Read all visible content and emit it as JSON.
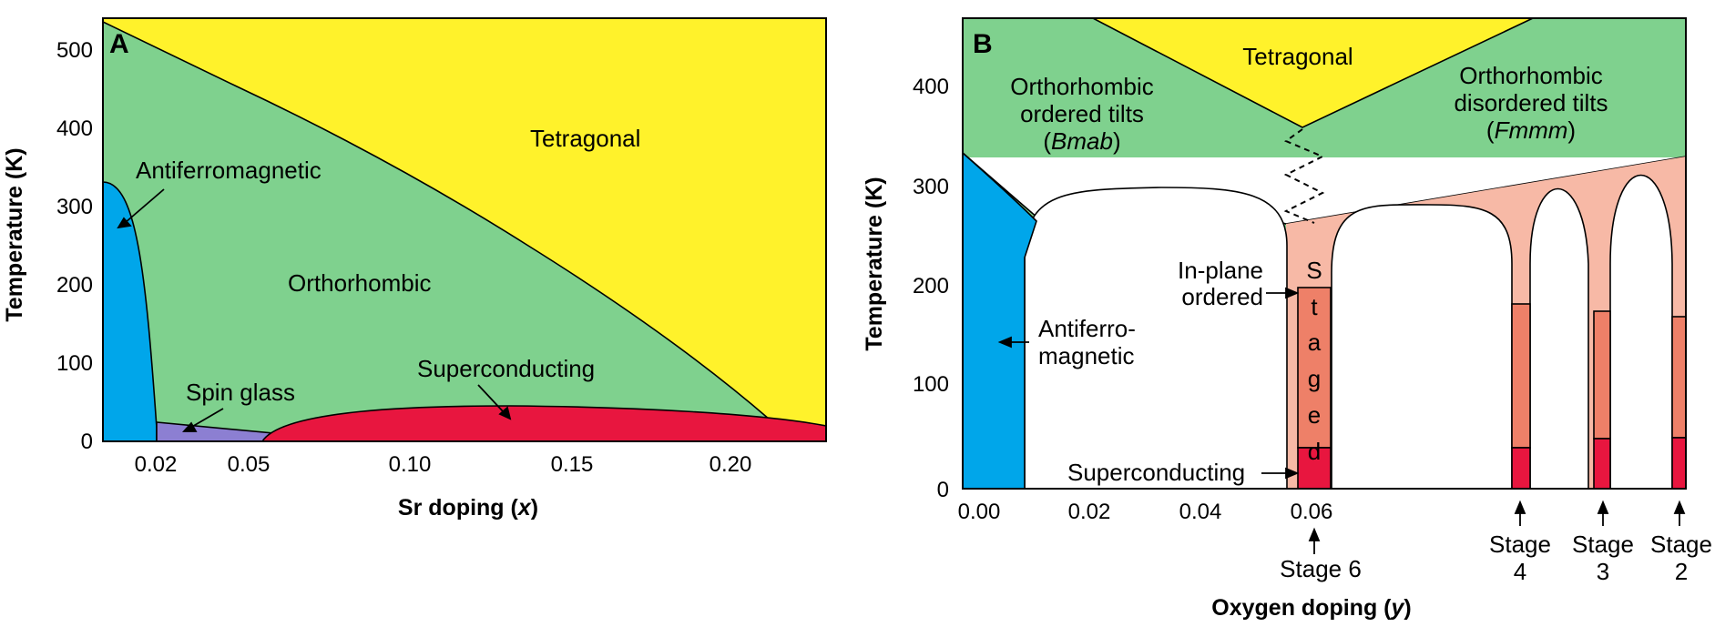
{
  "colors": {
    "tetragonal": "#FFF22B",
    "orthorhombic": "#7FD18E",
    "antiferromagnetic": "#00A6EA",
    "spin_glass": "#8C7FD2",
    "superconducting": "#E8163F",
    "staged_light": "#F7B9A6",
    "staged_mid": "#EE8068",
    "background": "#FFFFFF"
  },
  "chart_data": [
    {
      "type": "area",
      "panel_label": "A",
      "xlabel_prefix": "Sr doping (",
      "xlabel_var": "x",
      "xlabel_suffix": ")",
      "ylabel": "Temperature (K)",
      "xlim": [
        0.0,
        0.24
      ],
      "ylim": [
        0,
        540
      ],
      "x_ticks": [
        "0.02",
        "0.05",
        "0.10",
        "0.15",
        "0.20"
      ],
      "y_ticks": [
        "0",
        "100",
        "200",
        "300",
        "400",
        "500"
      ],
      "regions": [
        {
          "name": "Tetragonal",
          "label": "Tetragonal",
          "label_at": [
            0.16,
            420
          ]
        },
        {
          "name": "Orthorhombic",
          "label": "Orthorhombic",
          "label_at": [
            0.09,
            200
          ]
        },
        {
          "name": "Antiferromagnetic",
          "label": "Antiferromagnetic",
          "label_at": [
            0.075,
            350
          ]
        },
        {
          "name": "Spin glass",
          "label": "Spin glass",
          "label_at": [
            0.04,
            60
          ]
        },
        {
          "name": "Superconducting",
          "label": "Superconducting",
          "label_at": [
            0.13,
            90
          ]
        }
      ],
      "boundaries": {
        "tetragonal_orthorhombic": [
          [
            0.0,
            530
          ],
          [
            0.05,
            420
          ],
          [
            0.1,
            300
          ],
          [
            0.15,
            170
          ],
          [
            0.18,
            90
          ],
          [
            0.21,
            30
          ]
        ],
        "antiferromagnetic": [
          [
            0.0,
            330
          ],
          [
            0.01,
            270
          ],
          [
            0.017,
            150
          ],
          [
            0.02,
            20
          ],
          [
            0.02,
            0
          ]
        ],
        "spin_glass": [
          [
            0.02,
            22
          ],
          [
            0.05,
            12
          ]
        ],
        "superconducting_dome": [
          [
            0.05,
            0
          ],
          [
            0.06,
            20
          ],
          [
            0.1,
            40
          ],
          [
            0.14,
            45
          ],
          [
            0.2,
            35
          ],
          [
            0.24,
            20
          ]
        ]
      }
    },
    {
      "type": "area",
      "panel_label": "B",
      "xlabel_prefix": "Oxygen doping (",
      "xlabel_var": "y",
      "xlabel_suffix": ")",
      "ylabel": "Temperature (K)",
      "xlim": [
        -0.005,
        0.12
      ],
      "ylim": [
        0,
        460
      ],
      "x_ticks": [
        "0.00",
        "0.02",
        "0.04",
        "0.06"
      ],
      "y_ticks": [
        "0",
        "100",
        "200",
        "300",
        "400"
      ],
      "regions": [
        {
          "name": "Tetragonal",
          "label": "Tetragonal",
          "label_at": [
            0.054,
            430
          ]
        },
        {
          "name": "Orthorhombic ordered tilts",
          "lines": [
            "Orthorhombic",
            "ordered tilts"
          ],
          "italic": "Bmab",
          "label_at": [
            0.015,
            400
          ]
        },
        {
          "name": "Orthorhombic disordered tilts",
          "lines": [
            "Orthorhombic",
            "disordered tilts"
          ],
          "italic": "Fmmm",
          "label_at": [
            0.094,
            400
          ]
        },
        {
          "name": "Antiferromagnetic",
          "lines": [
            "Antiferro-",
            "magnetic"
          ],
          "label_at": [
            0.025,
            140
          ]
        },
        {
          "name": "In-plane ordered",
          "lines": [
            "In-plane",
            "ordered"
          ],
          "label_at": [
            0.042,
            200
          ]
        },
        {
          "name": "Staged",
          "letters": [
            "S",
            "t",
            "a",
            "g",
            "e",
            "d"
          ]
        },
        {
          "name": "Superconducting",
          "label": "Superconducting",
          "label_at": [
            0.03,
            15
          ]
        }
      ],
      "stages": [
        {
          "label_top": "Stage 6",
          "label_bottom": "",
          "x": 0.0595
        },
        {
          "label_top": "Stage",
          "label_bottom": "4",
          "x": 0.0948
        },
        {
          "label_top": "Stage",
          "label_bottom": "3",
          "x": 0.1046
        },
        {
          "label_top": "Stage",
          "label_bottom": "2",
          "x": 0.1134
        }
      ],
      "boundaries": {
        "antiferromagnetic": [
          [
            0.0,
            330
          ],
          [
            0.006,
            280
          ],
          [
            0.009,
            250
          ],
          [
            0.009,
            0
          ]
        ],
        "tetragonal_orthorhombic": [
          [
            -0.005,
            460
          ],
          [
            0.057,
            355
          ],
          [
            0.12,
            460
          ]
        ],
        "orthorhombic_staged": [
          [
            0.057,
            265
          ],
          [
            0.12,
            325
          ]
        ],
        "staged_superconducting": [
          [
            0.057,
            40
          ],
          [
            0.062,
            40
          ]
        ]
      }
    }
  ]
}
